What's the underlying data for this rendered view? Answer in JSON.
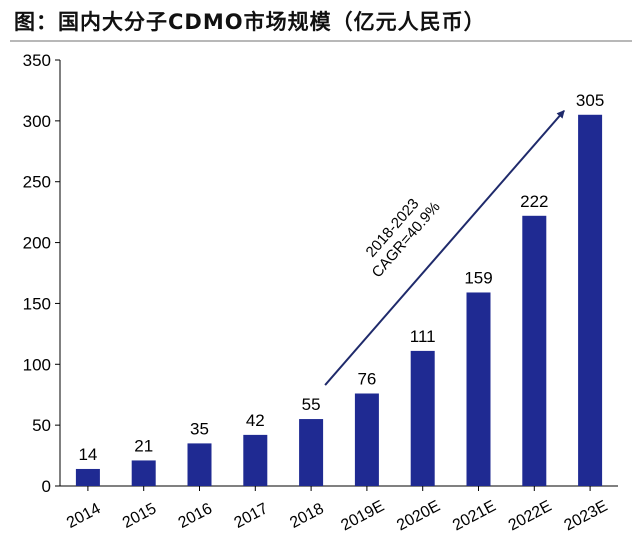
{
  "title": "图：国内大分子CDMO市场规模（亿元人民币）",
  "chart_data": {
    "type": "bar",
    "title": "图：国内大分子CDMO市场规模（亿元人民币）",
    "categories": [
      "2014",
      "2015",
      "2016",
      "2017",
      "2018",
      "2019E",
      "2020E",
      "2021E",
      "2022E",
      "2023E"
    ],
    "values": [
      14,
      21,
      35,
      42,
      55,
      76,
      111,
      159,
      222,
      305
    ],
    "data_labels": [
      "14",
      "21",
      "35",
      "42",
      "55",
      "76",
      "111",
      "159",
      "222",
      "305"
    ],
    "ylim": [
      0,
      350
    ],
    "yticks": [
      "0",
      "50",
      "100",
      "150",
      "200",
      "250",
      "300",
      "350"
    ],
    "xlabel": "",
    "ylabel": "",
    "grid": false,
    "legend": "none",
    "bar_color": "#1f2a92",
    "annotation": {
      "lines": [
        "2018-2023",
        "CAGR=40.9%"
      ],
      "arrow_from_category": "2018",
      "arrow_to_category": "2023E"
    }
  }
}
